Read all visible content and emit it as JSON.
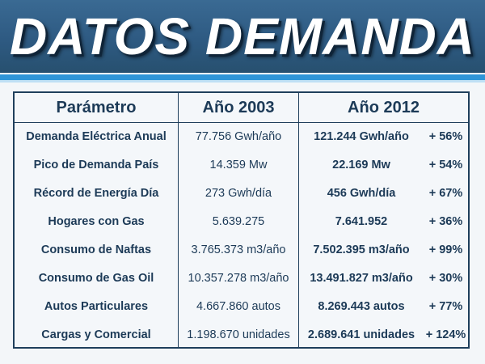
{
  "title": "DATOS DEMANDA",
  "table": {
    "headers": {
      "parametro": "Parámetro",
      "y2003": "Año 2003",
      "y2012": "Año 2012"
    },
    "rows": [
      {
        "parametro": "Demanda Eléctrica Anual",
        "y2003": "77.756 Gwh/año",
        "y2012": "121.244 Gwh/año",
        "variacion": "+ 56%"
      },
      {
        "parametro": "Pico de Demanda País",
        "y2003": "14.359 Mw",
        "y2012": "22.169 Mw",
        "variacion": "+ 54%"
      },
      {
        "parametro": "Récord de Energía Día",
        "y2003": "273 Gwh/día",
        "y2012": "456 Gwh/día",
        "variacion": "+ 67%"
      },
      {
        "parametro": "Hogares con Gas",
        "y2003": "5.639.275",
        "y2012": "7.641.952",
        "variacion": "+ 36%"
      },
      {
        "parametro": "Consumo de Naftas",
        "y2003": "3.765.373 m3/año",
        "y2012": "7.502.395 m3/año",
        "variacion": "+ 99%"
      },
      {
        "parametro": "Consumo de Gas Oil",
        "y2003": "10.357.278 m3/año",
        "y2012": "13.491.827 m3/año",
        "variacion": "+ 30%"
      },
      {
        "parametro": "Autos Particulares",
        "y2003": "4.667.860 autos",
        "y2012": "8.269.443 autos",
        "variacion": "+ 77%"
      },
      {
        "parametro": "Cargas y Comercial",
        "y2003": "1.198.670 unidades",
        "y2012": "2.689.641 unidades",
        "variacion": "+ 124%"
      }
    ]
  }
}
